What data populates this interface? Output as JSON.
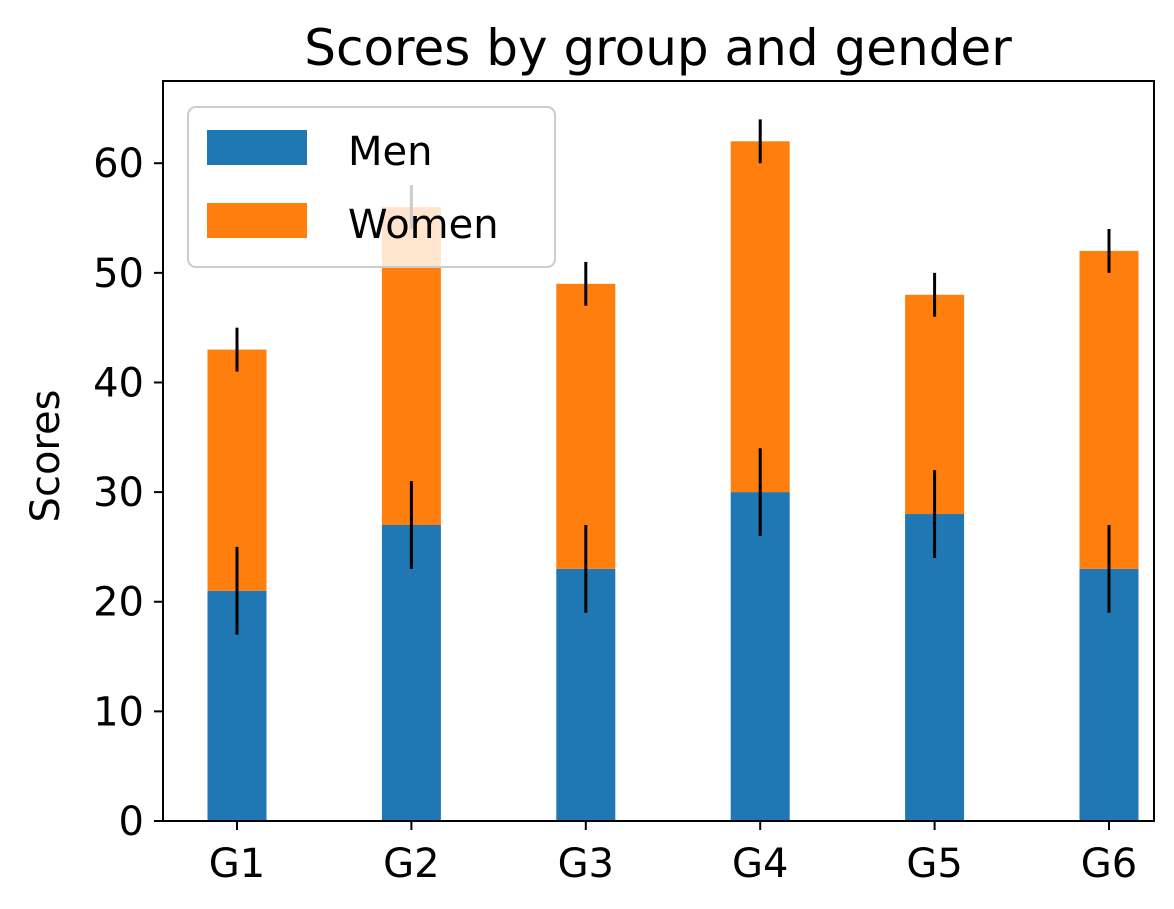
{
  "chart_data": {
    "type": "bar",
    "stacked": true,
    "title": "Scores by group and gender",
    "xlabel": "",
    "ylabel": "Scores",
    "categories": [
      "G1",
      "G2",
      "G3",
      "G4",
      "G5",
      "G6"
    ],
    "series": [
      {
        "name": "Men",
        "color": "#1f77b4",
        "values": [
          21,
          27,
          23,
          30,
          28,
          23
        ],
        "errors": [
          4,
          4,
          4,
          4,
          4,
          4
        ]
      },
      {
        "name": "Women",
        "color": "#ff7f0e",
        "values": [
          22,
          29,
          26,
          32,
          20,
          29
        ],
        "errors": [
          2,
          2,
          2,
          2,
          2,
          2
        ]
      }
    ],
    "ylim": [
      0,
      67.5
    ],
    "yticks": [
      0,
      10,
      20,
      30,
      40,
      50,
      60
    ],
    "ytick_labels": [
      "0",
      "10",
      "20",
      "30",
      "40",
      "50",
      "60"
    ],
    "grid": false,
    "legend_position": "top-left"
  }
}
